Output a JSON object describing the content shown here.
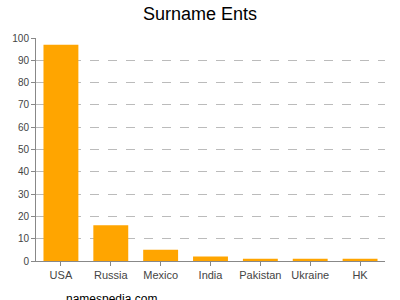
{
  "chart_data": {
    "type": "bar",
    "title": "Surname Ents",
    "categories": [
      "USA",
      "Russia",
      "Mexico",
      "India",
      "Pakistan",
      "Ukraine",
      "HK"
    ],
    "values": [
      97,
      16,
      5,
      2,
      1,
      1,
      1
    ],
    "color": "#ffa500",
    "ylim": [
      0,
      100
    ],
    "yticks": [
      0,
      10,
      20,
      30,
      40,
      50,
      60,
      70,
      80,
      90,
      100
    ],
    "grid": true,
    "annotations": [
      "namespedia.com"
    ]
  }
}
